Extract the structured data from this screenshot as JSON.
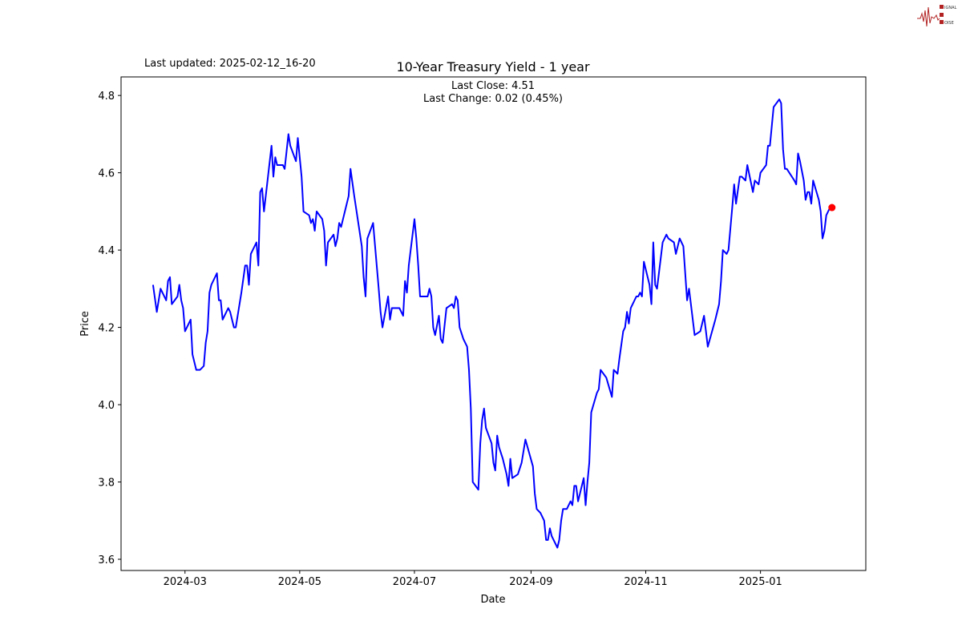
{
  "header": {
    "last_updated": "Last updated: 2025-02-12_16-20"
  },
  "logo": {
    "text": "SIGNAL 2 NOISE",
    "color": "#b22222"
  },
  "chart_data": {
    "type": "line",
    "title": "10-Year Treasury Yield - 1 year",
    "annotations": [
      "Last Close: 4.51",
      "Last Change: 0.02 (0.45%)"
    ],
    "xlabel": "Date",
    "ylabel": "Price",
    "xlim": [
      "2024-01-27",
      "2025-02-26"
    ],
    "ylim": [
      3.571,
      4.848
    ],
    "x_ticks": [
      {
        "date": "2024-03-01",
        "label": "2024-03"
      },
      {
        "date": "2024-05-01",
        "label": "2024-05"
      },
      {
        "date": "2024-07-01",
        "label": "2024-07"
      },
      {
        "date": "2024-09-01",
        "label": "2024-09"
      },
      {
        "date": "2024-11-01",
        "label": "2024-11"
      },
      {
        "date": "2025-01-01",
        "label": "2025-01"
      }
    ],
    "y_ticks": [
      3.6,
      3.8,
      4.0,
      4.2,
      4.4,
      4.6,
      4.8
    ],
    "y_tick_labels": [
      "3.6",
      "3.8",
      "4.0",
      "4.2",
      "4.4",
      "4.6",
      "4.8"
    ],
    "grid": false,
    "series": [
      {
        "color": "#0000ff",
        "dates": [
          "2024-02-13",
          "2024-02-15",
          "2024-02-17",
          "2024-02-20",
          "2024-02-21",
          "2024-02-22",
          "2024-02-23",
          "2024-02-26",
          "2024-02-27",
          "2024-02-28",
          "2024-02-29",
          "2024-03-01",
          "2024-03-04",
          "2024-03-05",
          "2024-03-07",
          "2024-03-09",
          "2024-03-11",
          "2024-03-12",
          "2024-03-13",
          "2024-03-14",
          "2024-03-15",
          "2024-03-18",
          "2024-03-19",
          "2024-03-20",
          "2024-03-21",
          "2024-03-24",
          "2024-03-25",
          "2024-03-27",
          "2024-03-28",
          "2024-03-31",
          "2024-04-02",
          "2024-04-03",
          "2024-04-04",
          "2024-04-05",
          "2024-04-08",
          "2024-04-09",
          "2024-04-10",
          "2024-04-11",
          "2024-04-12",
          "2024-04-16",
          "2024-04-17",
          "2024-04-18",
          "2024-04-19",
          "2024-04-22",
          "2024-04-23",
          "2024-04-25",
          "2024-04-26",
          "2024-04-29",
          "2024-04-30",
          "2024-05-02",
          "2024-05-03",
          "2024-05-06",
          "2024-05-07",
          "2024-05-08",
          "2024-05-09",
          "2024-05-10",
          "2024-05-13",
          "2024-05-14",
          "2024-05-15",
          "2024-05-16",
          "2024-05-19",
          "2024-05-20",
          "2024-05-21",
          "2024-05-22",
          "2024-05-23",
          "2024-05-27",
          "2024-05-28",
          "2024-05-30",
          "2024-06-03",
          "2024-06-04",
          "2024-06-05",
          "2024-06-06",
          "2024-06-09",
          "2024-06-12",
          "2024-06-13",
          "2024-06-14",
          "2024-06-17",
          "2024-06-18",
          "2024-06-19",
          "2024-06-23",
          "2024-06-25",
          "2024-06-26",
          "2024-06-27",
          "2024-06-28",
          "2024-07-01",
          "2024-07-02",
          "2024-07-03",
          "2024-07-04",
          "2024-07-08",
          "2024-07-09",
          "2024-07-10",
          "2024-07-11",
          "2024-07-12",
          "2024-07-14",
          "2024-07-15",
          "2024-07-16",
          "2024-07-18",
          "2024-07-21",
          "2024-07-22",
          "2024-07-23",
          "2024-07-24",
          "2024-07-25",
          "2024-07-27",
          "2024-07-29",
          "2024-07-30",
          "2024-07-31",
          "2024-08-01",
          "2024-08-04",
          "2024-08-05",
          "2024-08-06",
          "2024-08-07",
          "2024-08-08",
          "2024-08-11",
          "2024-08-12",
          "2024-08-13",
          "2024-08-14",
          "2024-08-15",
          "2024-08-17",
          "2024-08-19",
          "2024-08-20",
          "2024-08-21",
          "2024-08-22",
          "2024-08-25",
          "2024-08-27",
          "2024-08-29",
          "2024-09-02",
          "2024-09-03",
          "2024-09-04",
          "2024-09-06",
          "2024-09-08",
          "2024-09-09",
          "2024-09-10",
          "2024-09-11",
          "2024-09-12",
          "2024-09-15",
          "2024-09-16",
          "2024-09-17",
          "2024-09-18",
          "2024-09-20",
          "2024-09-22",
          "2024-09-23",
          "2024-09-24",
          "2024-09-25",
          "2024-09-26",
          "2024-09-29",
          "2024-09-30",
          "2024-10-01",
          "2024-10-02",
          "2024-10-03",
          "2024-10-06",
          "2024-10-07",
          "2024-10-08",
          "2024-10-11",
          "2024-10-14",
          "2024-10-15",
          "2024-10-17",
          "2024-10-18",
          "2024-10-20",
          "2024-10-21",
          "2024-10-22",
          "2024-10-23",
          "2024-10-24",
          "2024-10-27",
          "2024-10-28",
          "2024-10-29",
          "2024-10-30",
          "2024-10-31",
          "2024-11-03",
          "2024-11-04",
          "2024-11-05",
          "2024-11-06",
          "2024-11-07",
          "2024-11-10",
          "2024-11-12",
          "2024-11-13",
          "2024-11-16",
          "2024-11-17",
          "2024-11-19",
          "2024-11-21",
          "2024-11-23",
          "2024-11-24",
          "2024-11-27",
          "2024-11-30",
          "2024-12-02",
          "2024-12-03",
          "2024-12-04",
          "2024-12-08",
          "2024-12-10",
          "2024-12-11",
          "2024-12-12",
          "2024-12-14",
          "2024-12-15",
          "2024-12-17",
          "2024-12-18",
          "2024-12-19",
          "2024-12-21",
          "2024-12-22",
          "2024-12-24",
          "2024-12-25",
          "2024-12-28",
          "2024-12-29",
          "2024-12-31",
          "2025-01-01",
          "2025-01-04",
          "2025-01-05",
          "2025-01-06",
          "2025-01-08",
          "2025-01-11",
          "2025-01-12",
          "2025-01-13",
          "2025-01-14",
          "2025-01-15",
          "2025-01-19",
          "2025-01-20",
          "2025-01-21",
          "2025-01-22",
          "2025-01-24",
          "2025-01-25",
          "2025-01-26",
          "2025-01-27",
          "2025-01-28",
          "2025-01-29",
          "2025-02-01",
          "2025-02-02",
          "2025-02-03",
          "2025-02-04",
          "2025-02-05",
          "2025-02-07",
          "2025-02-08"
        ],
        "values": [
          4.31,
          4.24,
          4.3,
          4.27,
          4.32,
          4.33,
          4.26,
          4.28,
          4.31,
          4.27,
          4.25,
          4.19,
          4.22,
          4.13,
          4.09,
          4.09,
          4.1,
          4.16,
          4.19,
          4.29,
          4.31,
          4.34,
          4.27,
          4.27,
          4.22,
          4.25,
          4.24,
          4.2,
          4.2,
          4.29,
          4.36,
          4.36,
          4.31,
          4.39,
          4.42,
          4.36,
          4.55,
          4.56,
          4.5,
          4.67,
          4.59,
          4.64,
          4.62,
          4.62,
          4.61,
          4.7,
          4.67,
          4.63,
          4.69,
          4.59,
          4.5,
          4.49,
          4.47,
          4.48,
          4.45,
          4.5,
          4.48,
          4.45,
          4.36,
          4.42,
          4.44,
          4.41,
          4.43,
          4.47,
          4.46,
          4.54,
          4.61,
          4.54,
          4.41,
          4.33,
          4.28,
          4.43,
          4.47,
          4.3,
          4.24,
          4.2,
          4.28,
          4.22,
          4.25,
          4.25,
          4.23,
          4.32,
          4.29,
          4.36,
          4.48,
          4.43,
          4.36,
          4.28,
          4.28,
          4.3,
          4.28,
          4.2,
          4.18,
          4.23,
          4.17,
          4.16,
          4.25,
          4.26,
          4.25,
          4.28,
          4.27,
          4.2,
          4.17,
          4.15,
          4.09,
          3.99,
          3.8,
          3.78,
          3.9,
          3.96,
          3.99,
          3.94,
          3.9,
          3.85,
          3.83,
          3.92,
          3.89,
          3.86,
          3.82,
          3.79,
          3.86,
          3.81,
          3.82,
          3.85,
          3.91,
          3.84,
          3.77,
          3.73,
          3.72,
          3.7,
          3.65,
          3.65,
          3.68,
          3.66,
          3.63,
          3.65,
          3.7,
          3.73,
          3.73,
          3.75,
          3.74,
          3.79,
          3.79,
          3.75,
          3.81,
          3.74,
          3.8,
          3.85,
          3.98,
          4.03,
          4.04,
          4.09,
          4.07,
          4.02,
          4.09,
          4.08,
          4.12,
          4.19,
          4.2,
          4.24,
          4.21,
          4.25,
          4.28,
          4.28,
          4.29,
          4.28,
          4.37,
          4.31,
          4.26,
          4.42,
          4.31,
          4.3,
          4.42,
          4.44,
          4.43,
          4.42,
          4.39,
          4.43,
          4.41,
          4.27,
          4.3,
          4.18,
          4.19,
          4.23,
          4.19,
          4.15,
          4.22,
          4.26,
          4.32,
          4.4,
          4.39,
          4.4,
          4.51,
          4.57,
          4.52,
          4.59,
          4.59,
          4.58,
          4.62,
          4.55,
          4.58,
          4.57,
          4.6,
          4.62,
          4.67,
          4.67,
          4.77,
          4.79,
          4.78,
          4.66,
          4.61,
          4.61,
          4.58,
          4.57,
          4.65,
          4.63,
          4.58,
          4.53,
          4.55,
          4.55,
          4.52,
          4.58,
          4.53,
          4.5,
          4.43,
          4.45,
          4.49,
          4.51,
          4.51
        ]
      }
    ],
    "last_point": {
      "date": "2025-02-08",
      "value": 4.51,
      "color": "#ff0000"
    }
  }
}
